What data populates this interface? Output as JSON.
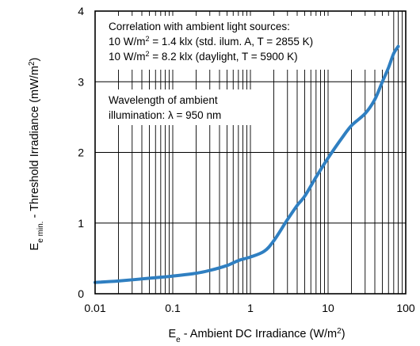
{
  "chart_data": {
    "type": "line",
    "x_scale": "log",
    "y_scale": "linear",
    "xlim": [
      0.01,
      100
    ],
    "ylim": [
      0,
      4
    ],
    "grid": true,
    "x_ticks": [
      {
        "value": 0.01,
        "label": "0.01"
      },
      {
        "value": 0.1,
        "label": "0.1"
      },
      {
        "value": 1,
        "label": "1"
      },
      {
        "value": 10,
        "label": "10"
      },
      {
        "value": 100,
        "label": "100"
      }
    ],
    "y_ticks": [
      {
        "value": 0,
        "label": "0"
      },
      {
        "value": 1,
        "label": "1"
      },
      {
        "value": 2,
        "label": "2"
      },
      {
        "value": 3,
        "label": "3"
      },
      {
        "value": 4,
        "label": "4"
      }
    ],
    "xlabel": {
      "main": "E",
      "sub": "e",
      "text": " - Ambient DC Irradiance (W/m",
      "sup": "2",
      "end": ")"
    },
    "ylabel": {
      "main": "E",
      "sub": "e min.",
      "text": " - Threshold Irradiance (mW/m",
      "sup": "2",
      "end": ")"
    },
    "annotations": {
      "correlation": [
        [
          {
            "t": "Correlation with ambient light sources:"
          }
        ],
        [
          {
            "t": "10 W/m"
          },
          {
            "t": "2",
            "sup": true
          },
          {
            "t": " = 1.4 klx (std. ilum. A, T = 2855 K)"
          }
        ],
        [
          {
            "t": "10 W/m"
          },
          {
            "t": "2",
            "sup": true
          },
          {
            "t": " = 8.2 klx (daylight, T = 5900 K)"
          }
        ]
      ],
      "wavelength": [
        [
          {
            "t": "Wavelength of ambient"
          }
        ],
        [
          {
            "t": "illumination: λ = 950 nm"
          }
        ]
      ]
    },
    "series": [
      {
        "color": "#2f7fc1",
        "points": [
          [
            0.01,
            0.16
          ],
          [
            0.02,
            0.18
          ],
          [
            0.05,
            0.22
          ],
          [
            0.1,
            0.25
          ],
          [
            0.2,
            0.29
          ],
          [
            0.3,
            0.33
          ],
          [
            0.5,
            0.4
          ],
          [
            0.7,
            0.47
          ],
          [
            1.0,
            0.52
          ],
          [
            1.5,
            0.6
          ],
          [
            2.0,
            0.75
          ],
          [
            3.0,
            1.05
          ],
          [
            4.0,
            1.25
          ],
          [
            5.0,
            1.38
          ],
          [
            7.0,
            1.65
          ],
          [
            10.0,
            1.92
          ],
          [
            15.0,
            2.2
          ],
          [
            20.0,
            2.38
          ],
          [
            30.0,
            2.55
          ],
          [
            40.0,
            2.75
          ],
          [
            50.0,
            3.0
          ],
          [
            60.0,
            3.2
          ],
          [
            70.0,
            3.4
          ],
          [
            80.0,
            3.5
          ]
        ]
      }
    ]
  }
}
